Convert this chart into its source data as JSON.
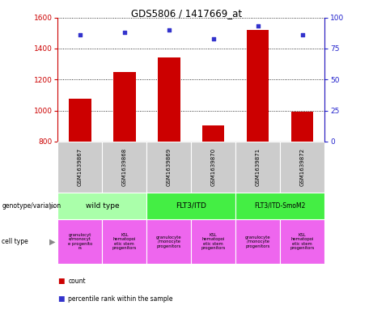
{
  "title": "GDS5806 / 1417669_at",
  "samples": [
    "GSM1639867",
    "GSM1639868",
    "GSM1639869",
    "GSM1639870",
    "GSM1639871",
    "GSM1639872"
  ],
  "counts": [
    1075,
    1250,
    1340,
    905,
    1520,
    990
  ],
  "percentiles": [
    86,
    88,
    90,
    83,
    93,
    86
  ],
  "ylim_left": [
    800,
    1600
  ],
  "ylim_right": [
    0,
    100
  ],
  "yticks_left": [
    800,
    1000,
    1200,
    1400,
    1600
  ],
  "yticks_right": [
    0,
    25,
    50,
    75,
    100
  ],
  "bar_color": "#cc0000",
  "dot_color": "#3333cc",
  "bar_width": 0.5,
  "geno_groups": [
    {
      "label": "wild type",
      "start": 0,
      "end": 2,
      "color": "#aaffaa"
    },
    {
      "label": "FLT3/ITD",
      "start": 2,
      "end": 4,
      "color": "#44ee44"
    },
    {
      "label": "FLT3/ITD-SmoM2",
      "start": 4,
      "end": 6,
      "color": "#44ee44"
    }
  ],
  "cell_labels": [
    "granulocyt\ne/monocyt\ne progenito\nrs",
    "KSL\nhematopoi\netic stem\nprogenitors",
    "granulocyte\n/monocyte\nprogenitors",
    "KSL\nhematopoi\netic stem\nprogenitors",
    "granulocyte\n/monocyte\nprogenitors",
    "KSL\nhematopoi\netic stem\nprogenitors"
  ],
  "cell_color": "#ee66ee",
  "sample_bg": "#cccccc",
  "genotype_label": "genotype/variation",
  "cell_type_label": "cell type",
  "legend_count": "count",
  "legend_percentile": "percentile rank within the sample",
  "left_axis_color": "#cc0000",
  "right_axis_color": "#2222cc"
}
